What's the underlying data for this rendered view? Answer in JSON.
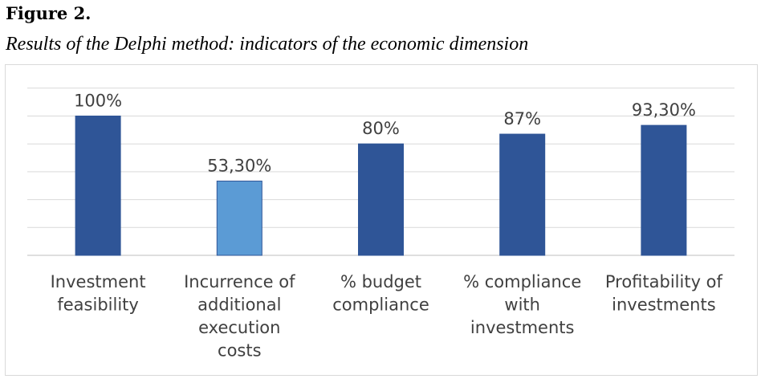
{
  "figure": {
    "label": "Figure 2.",
    "caption": "Results of the Delphi method: indicators of the economic dimension"
  },
  "colors": {
    "primary_bar": "#2f5597",
    "highlight_bar": "#5b9bd5",
    "grid": "#d9d9d9",
    "text": "#404040"
  },
  "chart_data": {
    "type": "bar",
    "title": "",
    "xlabel": "",
    "ylabel": "",
    "ylim": [
      0,
      125
    ],
    "grid": true,
    "categories": [
      [
        "Investment",
        "feasibility"
      ],
      [
        "Incurrence of",
        "additional",
        "execution",
        "costs"
      ],
      [
        "% budget",
        "compliance"
      ],
      [
        "% compliance",
        "with",
        "investments"
      ],
      [
        "Profitability of",
        "investments"
      ]
    ],
    "values": [
      100,
      53.3,
      80,
      87,
      93.3
    ],
    "data_labels": [
      "100%",
      "53,30%",
      "80%",
      "87%",
      "93,30%"
    ],
    "highlight_index": 1
  }
}
